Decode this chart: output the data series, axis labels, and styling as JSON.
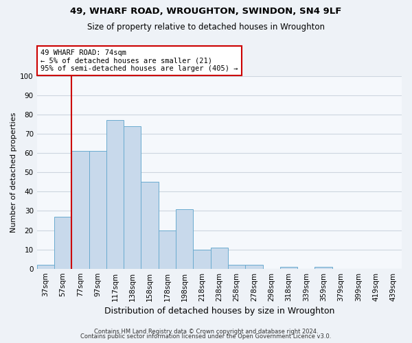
{
  "title1": "49, WHARF ROAD, WROUGHTON, SWINDON, SN4 9LF",
  "title2": "Size of property relative to detached houses in Wroughton",
  "xlabel": "Distribution of detached houses by size in Wroughton",
  "ylabel": "Number of detached properties",
  "bar_labels": [
    "37sqm",
    "57sqm",
    "77sqm",
    "97sqm",
    "117sqm",
    "138sqm",
    "158sqm",
    "178sqm",
    "198sqm",
    "218sqm",
    "238sqm",
    "258sqm",
    "278sqm",
    "298sqm",
    "318sqm",
    "339sqm",
    "359sqm",
    "379sqm",
    "399sqm",
    "419sqm",
    "439sqm"
  ],
  "bar_values": [
    2,
    27,
    61,
    61,
    77,
    74,
    45,
    20,
    31,
    10,
    11,
    2,
    2,
    0,
    1,
    0,
    1,
    0,
    0,
    0,
    0
  ],
  "bar_color": "#c8d9eb",
  "bar_edge_color": "#6aabcf",
  "vline_x": 1.5,
  "vline_color": "#cc0000",
  "annotation_text": "49 WHARF ROAD: 74sqm\n← 5% of detached houses are smaller (21)\n95% of semi-detached houses are larger (405) →",
  "annotation_box_color": "#ffffff",
  "annotation_box_edge": "#cc0000",
  "ylim": [
    0,
    100
  ],
  "yticks": [
    0,
    10,
    20,
    30,
    40,
    50,
    60,
    70,
    80,
    90,
    100
  ],
  "footer1": "Contains HM Land Registry data © Crown copyright and database right 2024.",
  "footer2": "Contains public sector information licensed under the Open Government Licence v3.0.",
  "bg_color": "#eef2f7",
  "plot_bg_color": "#f5f8fc",
  "grid_color": "#cdd5df",
  "title1_fontsize": 9.5,
  "title2_fontsize": 8.5,
  "xlabel_fontsize": 9,
  "ylabel_fontsize": 8,
  "tick_fontsize": 7.5,
  "footer_fontsize": 6.0
}
